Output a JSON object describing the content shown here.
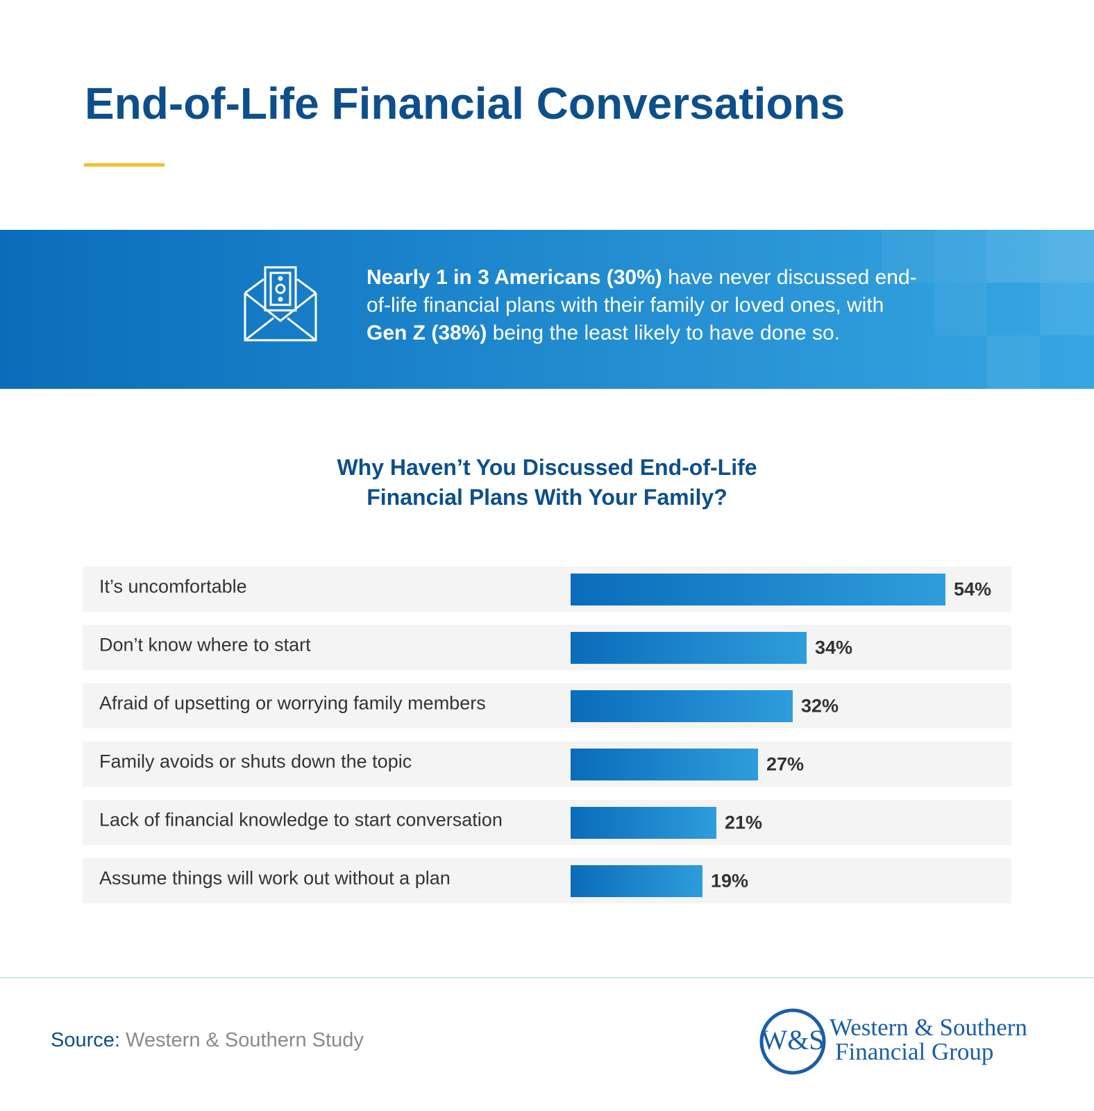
{
  "header": {
    "title": "End-of-Life Financial Conversations"
  },
  "banner": {
    "segments": [
      {
        "text": "Nearly 1 in 3 Americans (30%)",
        "bold": true
      },
      {
        "text": " have never discussed end-of-life financial plans with their family or loved ones, with ",
        "bold": false
      },
      {
        "text": "Gen Z (38%)",
        "bold": true
      },
      {
        "text": " being the least likely to have done so.",
        "bold": false
      }
    ]
  },
  "chart_data": {
    "type": "bar",
    "orientation": "horizontal",
    "title": "Why Haven’t You Discussed End-of-Life Financial Plans With Your Family?",
    "categories": [
      "It’s uncomfortable",
      "Don’t know where to start",
      "Afraid of upsetting or worrying family members",
      "Family avoids or shuts down the topic",
      "Lack of financial knowledge to start conversation",
      "Assume things will work out without a plan"
    ],
    "values": [
      54,
      34,
      32,
      27,
      21,
      19
    ],
    "value_labels": [
      "54%",
      "34%",
      "32%",
      "27%",
      "21%",
      "19%"
    ],
    "gradient": [
      "#0a6cba",
      "#2e9ddc"
    ]
  },
  "source": {
    "label": "Source:",
    "text": "Western & Southern Study"
  },
  "logo": {
    "monogram": "W&S",
    "name": "Western & Southern",
    "subname": "Financial Group"
  }
}
